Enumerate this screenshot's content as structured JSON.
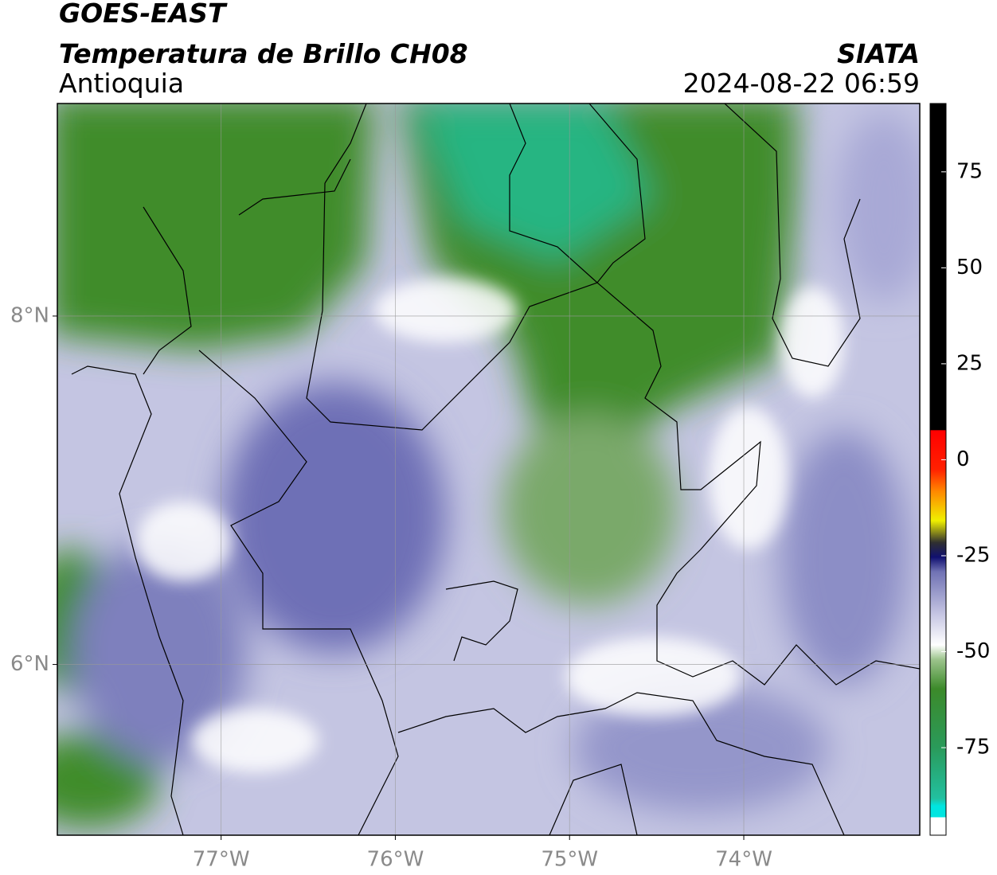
{
  "header": {
    "title": "GOES-EAST",
    "product": "Temperatura de Brillo CH08",
    "region": "Antioquia",
    "source": "SIATA",
    "datetime": "2024-08-22 06:59"
  },
  "map": {
    "lonlim": [
      -77.94,
      -72.99
    ],
    "latlim": [
      5.02,
      9.22
    ],
    "lonticks": [
      {
        "value": -77,
        "label": "77°W"
      },
      {
        "value": -76,
        "label": "76°W"
      },
      {
        "value": -75,
        "label": "75°W"
      },
      {
        "value": -74,
        "label": "74°W"
      }
    ],
    "latticks": [
      {
        "value": 8,
        "label": "8°N"
      },
      {
        "value": 6,
        "label": "6°N"
      }
    ],
    "grid": true
  },
  "colorbar": {
    "lim": [
      -97.8,
      92.8
    ],
    "ticks": [
      75,
      50,
      25,
      0,
      -25,
      -50,
      -75
    ]
  }
}
